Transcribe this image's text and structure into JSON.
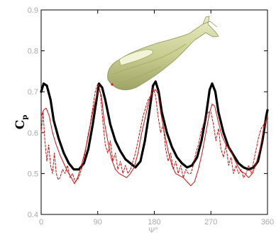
{
  "chart_data": {
    "type": "line",
    "xlabel": "Ψ°",
    "ylabel": "C_p",
    "ylabel_main": "C",
    "ylabel_sub": "p",
    "xlim": [
      0,
      360
    ],
    "ylim": [
      0.4,
      0.9
    ],
    "x_ticks": [
      0,
      90,
      180,
      270,
      360
    ],
    "x_tick_labels": [
      "0",
      "90",
      "180",
      "270",
      "360"
    ],
    "y_ticks": [
      0.4,
      0.5,
      0.6,
      0.7,
      0.8,
      0.9
    ],
    "y_tick_labels": [
      "0.4",
      "0.5",
      "0.6",
      "0.7",
      "0.8",
      "0.9"
    ],
    "grid": false,
    "inset_image": "helicopter-fuselage",
    "series": [
      {
        "color": "#000000",
        "style": "thick-solid",
        "x": [
          0,
          4,
          9,
          15,
          20,
          28,
          36,
          44,
          52,
          60,
          68,
          75,
          82,
          88,
          92,
          97,
          102,
          110,
          118,
          126,
          134,
          142,
          150,
          158,
          165,
          172,
          178,
          182,
          187,
          192,
          200,
          208,
          216,
          224,
          232,
          240,
          248,
          255,
          262,
          268,
          272,
          277,
          282,
          290,
          298,
          306,
          314,
          322,
          330,
          338,
          345,
          352,
          358,
          360
        ],
        "y": [
          0.7,
          0.72,
          0.715,
          0.68,
          0.63,
          0.585,
          0.55,
          0.525,
          0.51,
          0.51,
          0.525,
          0.56,
          0.62,
          0.68,
          0.72,
          0.71,
          0.68,
          0.62,
          0.58,
          0.555,
          0.535,
          0.525,
          0.515,
          0.53,
          0.58,
          0.65,
          0.715,
          0.725,
          0.7,
          0.65,
          0.6,
          0.565,
          0.54,
          0.525,
          0.515,
          0.52,
          0.54,
          0.58,
          0.64,
          0.705,
          0.72,
          0.7,
          0.65,
          0.6,
          0.565,
          0.545,
          0.525,
          0.515,
          0.51,
          0.515,
          0.53,
          0.58,
          0.64,
          0.655
        ]
      },
      {
        "color": "#cc1111",
        "style": "thin-solid",
        "x": [
          0,
          4,
          8,
          13,
          18,
          24,
          30,
          36,
          42,
          48,
          53,
          58,
          64,
          70,
          76,
          82,
          88,
          92,
          96,
          100,
          106,
          112,
          118,
          124,
          130,
          136,
          142,
          148,
          154,
          160,
          166,
          172,
          178,
          182,
          186,
          190,
          196,
          202,
          208,
          214,
          220,
          226,
          232,
          238,
          244,
          250,
          256,
          262,
          268,
          272,
          276,
          282,
          288,
          294,
          300,
          306,
          312,
          318,
          324,
          330,
          336,
          342,
          348,
          354,
          360
        ],
        "y": [
          0.64,
          0.655,
          0.66,
          0.64,
          0.6,
          0.57,
          0.545,
          0.525,
          0.505,
          0.49,
          0.475,
          0.49,
          0.52,
          0.555,
          0.6,
          0.65,
          0.69,
          0.705,
          0.69,
          0.63,
          0.58,
          0.535,
          0.51,
          0.5,
          0.495,
          0.49,
          0.5,
          0.515,
          0.55,
          0.6,
          0.64,
          0.68,
          0.7,
          0.705,
          0.695,
          0.65,
          0.6,
          0.555,
          0.52,
          0.5,
          0.495,
          0.49,
          0.48,
          0.47,
          0.48,
          0.51,
          0.55,
          0.6,
          0.65,
          0.67,
          0.665,
          0.625,
          0.59,
          0.57,
          0.56,
          0.54,
          0.52,
          0.505,
          0.5,
          0.49,
          0.5,
          0.525,
          0.56,
          0.61,
          0.64
        ]
      },
      {
        "color": "#cc1111",
        "style": "thin-dashed",
        "x": [
          0,
          3,
          6,
          9,
          12,
          15,
          18,
          21,
          24,
          27,
          30,
          34,
          38,
          42,
          46,
          50,
          54,
          58,
          62,
          66,
          70,
          74,
          78,
          82,
          86,
          90,
          94,
          98,
          102,
          106,
          110,
          114,
          118,
          122,
          126,
          130,
          134,
          138,
          142,
          146,
          150,
          154,
          158,
          162,
          166,
          170,
          174,
          178,
          182,
          186,
          190,
          194,
          198,
          202,
          206,
          210,
          214,
          218,
          222,
          226,
          230,
          234,
          238,
          242,
          246,
          250,
          254,
          258,
          262,
          266,
          270,
          274,
          278,
          282,
          286,
          290,
          294,
          298,
          302,
          306,
          310,
          314,
          318,
          322,
          326,
          330,
          334,
          338,
          342,
          346,
          350,
          354,
          358,
          360
        ],
        "y": [
          0.6,
          0.65,
          0.58,
          0.53,
          0.57,
          0.52,
          0.5,
          0.55,
          0.5,
          0.485,
          0.49,
          0.51,
          0.5,
          0.52,
          0.49,
          0.5,
          0.48,
          0.485,
          0.5,
          0.52,
          0.55,
          0.59,
          0.62,
          0.66,
          0.7,
          0.72,
          0.7,
          0.63,
          0.57,
          0.55,
          0.58,
          0.53,
          0.55,
          0.51,
          0.53,
          0.5,
          0.52,
          0.5,
          0.51,
          0.53,
          0.55,
          0.58,
          0.61,
          0.64,
          0.66,
          0.68,
          0.69,
          0.71,
          0.69,
          0.64,
          0.6,
          0.62,
          0.56,
          0.53,
          0.55,
          0.51,
          0.53,
          0.5,
          0.52,
          0.49,
          0.51,
          0.5,
          0.5,
          0.52,
          0.55,
          0.57,
          0.6,
          0.62,
          0.64,
          0.65,
          0.65,
          0.62,
          0.58,
          0.61,
          0.56,
          0.54,
          0.57,
          0.52,
          0.54,
          0.5,
          0.52,
          0.5,
          0.51,
          0.49,
          0.5,
          0.52,
          0.5,
          0.53,
          0.56,
          0.59,
          0.61,
          0.62,
          0.63,
          0.64
        ]
      }
    ]
  }
}
